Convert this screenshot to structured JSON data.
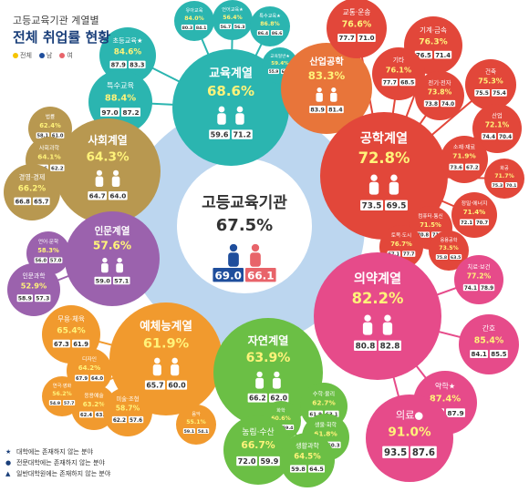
{
  "header": {
    "subtitle": "고등교육기관 계열별",
    "title": "전체 취업률 현황",
    "legend": [
      {
        "label": "전체",
        "color": "#f5c400"
      },
      {
        "label": "남",
        "color": "#1f4e9c"
      },
      {
        "label": "여",
        "color": "#e8646a"
      }
    ]
  },
  "notes": [
    {
      "symbol": "★",
      "text": "대학에는 존재하지 않는 분야"
    },
    {
      "symbol": "●",
      "text": "전문대학에는 존재하지 않는 분야"
    },
    {
      "symbol": "▲",
      "text": "일반대학원에는 존재하지 않는 분야"
    }
  ],
  "chart_data": {
    "type": "bubble-cluster",
    "center": {
      "name": "고등교육기관",
      "total": "67.5%",
      "male": "69.0",
      "female": "66.1"
    },
    "groups": [
      {
        "name": "교육계열",
        "total": "68.6%",
        "male": "59.6",
        "female": "71.2",
        "color": "#2bb5b0",
        "subs": [
          {
            "name": "유아교육",
            "pct": "84.0%",
            "m": "80.3",
            "f": "84.1"
          },
          {
            "name": "언어교육★",
            "pct": "56.4%",
            "m": "56.7",
            "f": "56.3"
          },
          {
            "name": "특수교육★",
            "pct": "86.8%",
            "m": "86.4",
            "f": "86.6"
          },
          {
            "name": "초등교육★",
            "pct": "84.6%",
            "m": "87.9",
            "f": "83.3"
          },
          {
            "name": "교육일반★",
            "pct": "59.4%",
            "m": "55.9",
            "f": "60.7"
          },
          {
            "name": "특수교육",
            "pct": "88.4%",
            "m": "97.0",
            "f": "87.2"
          }
        ]
      },
      {
        "name": "산업공학",
        "total": "83.3%",
        "male": "83.9",
        "female": "81.4",
        "color": "#e8753a",
        "subs": []
      },
      {
        "name": "공학계열",
        "total": "72.8%",
        "male": "73.5",
        "female": "69.5",
        "color": "#e2473a",
        "subs": [
          {
            "name": "교통·운송",
            "pct": "76.6%",
            "m": "77.7",
            "f": "71.0"
          },
          {
            "name": "기계·금속",
            "pct": "76.3%",
            "m": "76.5",
            "f": "71.4"
          },
          {
            "name": "기타",
            "pct": "76.1%",
            "m": "77.7",
            "f": "68.5"
          },
          {
            "name": "전기·전자",
            "pct": "73.8%",
            "m": "73.8",
            "f": "74.0"
          },
          {
            "name": "건축",
            "pct": "75.3%",
            "m": "75.5",
            "f": "75.4"
          },
          {
            "name": "산업",
            "pct": "72.1%",
            "m": "74.4",
            "f": "70.4"
          },
          {
            "name": "소재·재료",
            "pct": "71.9%",
            "m": "73.6",
            "f": "67.2"
          },
          {
            "name": "화공",
            "pct": "71.7%",
            "m": "75.3",
            "f": "70.1"
          },
          {
            "name": "정밀·에너지",
            "pct": "71.4%",
            "m": "72.1",
            "f": "70.7"
          },
          {
            "name": "컴퓨터·통신",
            "pct": "71.5%",
            "m": "70.8",
            "f": "71.4"
          },
          {
            "name": "토목·도시",
            "pct": "76.7%",
            "m": "67.1",
            "f": "77.7"
          },
          {
            "name": "응용공학",
            "pct": "73.5%",
            "m": "75.8",
            "f": "63.5"
          }
        ]
      },
      {
        "name": "사회계열",
        "total": "64.3%",
        "male": "64.7",
        "female": "64.0",
        "color": "#b89850",
        "subs": [
          {
            "name": "법률",
            "pct": "62.4%",
            "m": "58.1",
            "f": "61.0"
          },
          {
            "name": "사회과학",
            "pct": "64.1%",
            "m": "66.6",
            "f": "62.2"
          },
          {
            "name": "경영·경제",
            "pct": "66.2%",
            "m": "66.8",
            "f": "65.7"
          }
        ]
      },
      {
        "name": "인문계열",
        "total": "57.6%",
        "male": "59.0",
        "female": "57.1",
        "color": "#9b62ad",
        "subs": [
          {
            "name": "언어·문학",
            "pct": "58.3%",
            "m": "56.0",
            "f": "57.0"
          },
          {
            "name": "인문과학",
            "pct": "52.9%",
            "m": "58.9",
            "f": "57.3"
          }
        ]
      },
      {
        "name": "의약계열",
        "total": "82.2%",
        "male": "80.8",
        "female": "82.8",
        "color": "#e64b8a",
        "subs": [
          {
            "name": "치료·보건",
            "pct": "77.2%",
            "m": "74.1",
            "f": "78.9"
          },
          {
            "name": "간호",
            "pct": "85.4%",
            "m": "84.1",
            "f": "85.5"
          },
          {
            "name": "약학★",
            "pct": "87.4%",
            "m": "86.3",
            "f": "87.9"
          },
          {
            "name": "의료●",
            "pct": "91.0%",
            "m": "93.5",
            "f": "87.6"
          }
        ]
      },
      {
        "name": "예체능계열",
        "total": "61.9%",
        "male": "65.7",
        "female": "60.0",
        "color": "#f19a2e",
        "subs": [
          {
            "name": "무용·체육",
            "pct": "65.4%",
            "m": "67.3",
            "f": "61.9"
          },
          {
            "name": "디자인",
            "pct": "64.2%",
            "m": "67.9",
            "f": "64.0"
          },
          {
            "name": "응용예술",
            "pct": "63.2%",
            "m": "62.4",
            "f": "63.5"
          },
          {
            "name": "연극·영화",
            "pct": "56.2%",
            "m": "54.9",
            "f": "57.7"
          },
          {
            "name": "미술·조형",
            "pct": "58.7%",
            "m": "62.2",
            "f": "57.6"
          },
          {
            "name": "음악",
            "pct": "55.1%",
            "m": "59.1",
            "f": "54.1"
          }
        ]
      },
      {
        "name": "자연계열",
        "total": "63.9%",
        "male": "66.2",
        "female": "62.0",
        "color": "#6bbf45",
        "subs": [
          {
            "name": "수학·물리",
            "pct": "62.7%",
            "m": "61.9",
            "f": "63.1"
          },
          {
            "name": "화학",
            "pct": "60.6%",
            "m": "61.8",
            "f": "59.4"
          },
          {
            "name": "생물·화학",
            "pct": "61.8%",
            "m": "57.1",
            "f": "60.3"
          },
          {
            "name": "농림·수산",
            "pct": "66.7%",
            "m": "72.0",
            "f": "59.9"
          },
          {
            "name": "생활과학",
            "pct": "64.5%",
            "m": "59.8",
            "f": "64.5"
          }
        ]
      }
    ]
  }
}
